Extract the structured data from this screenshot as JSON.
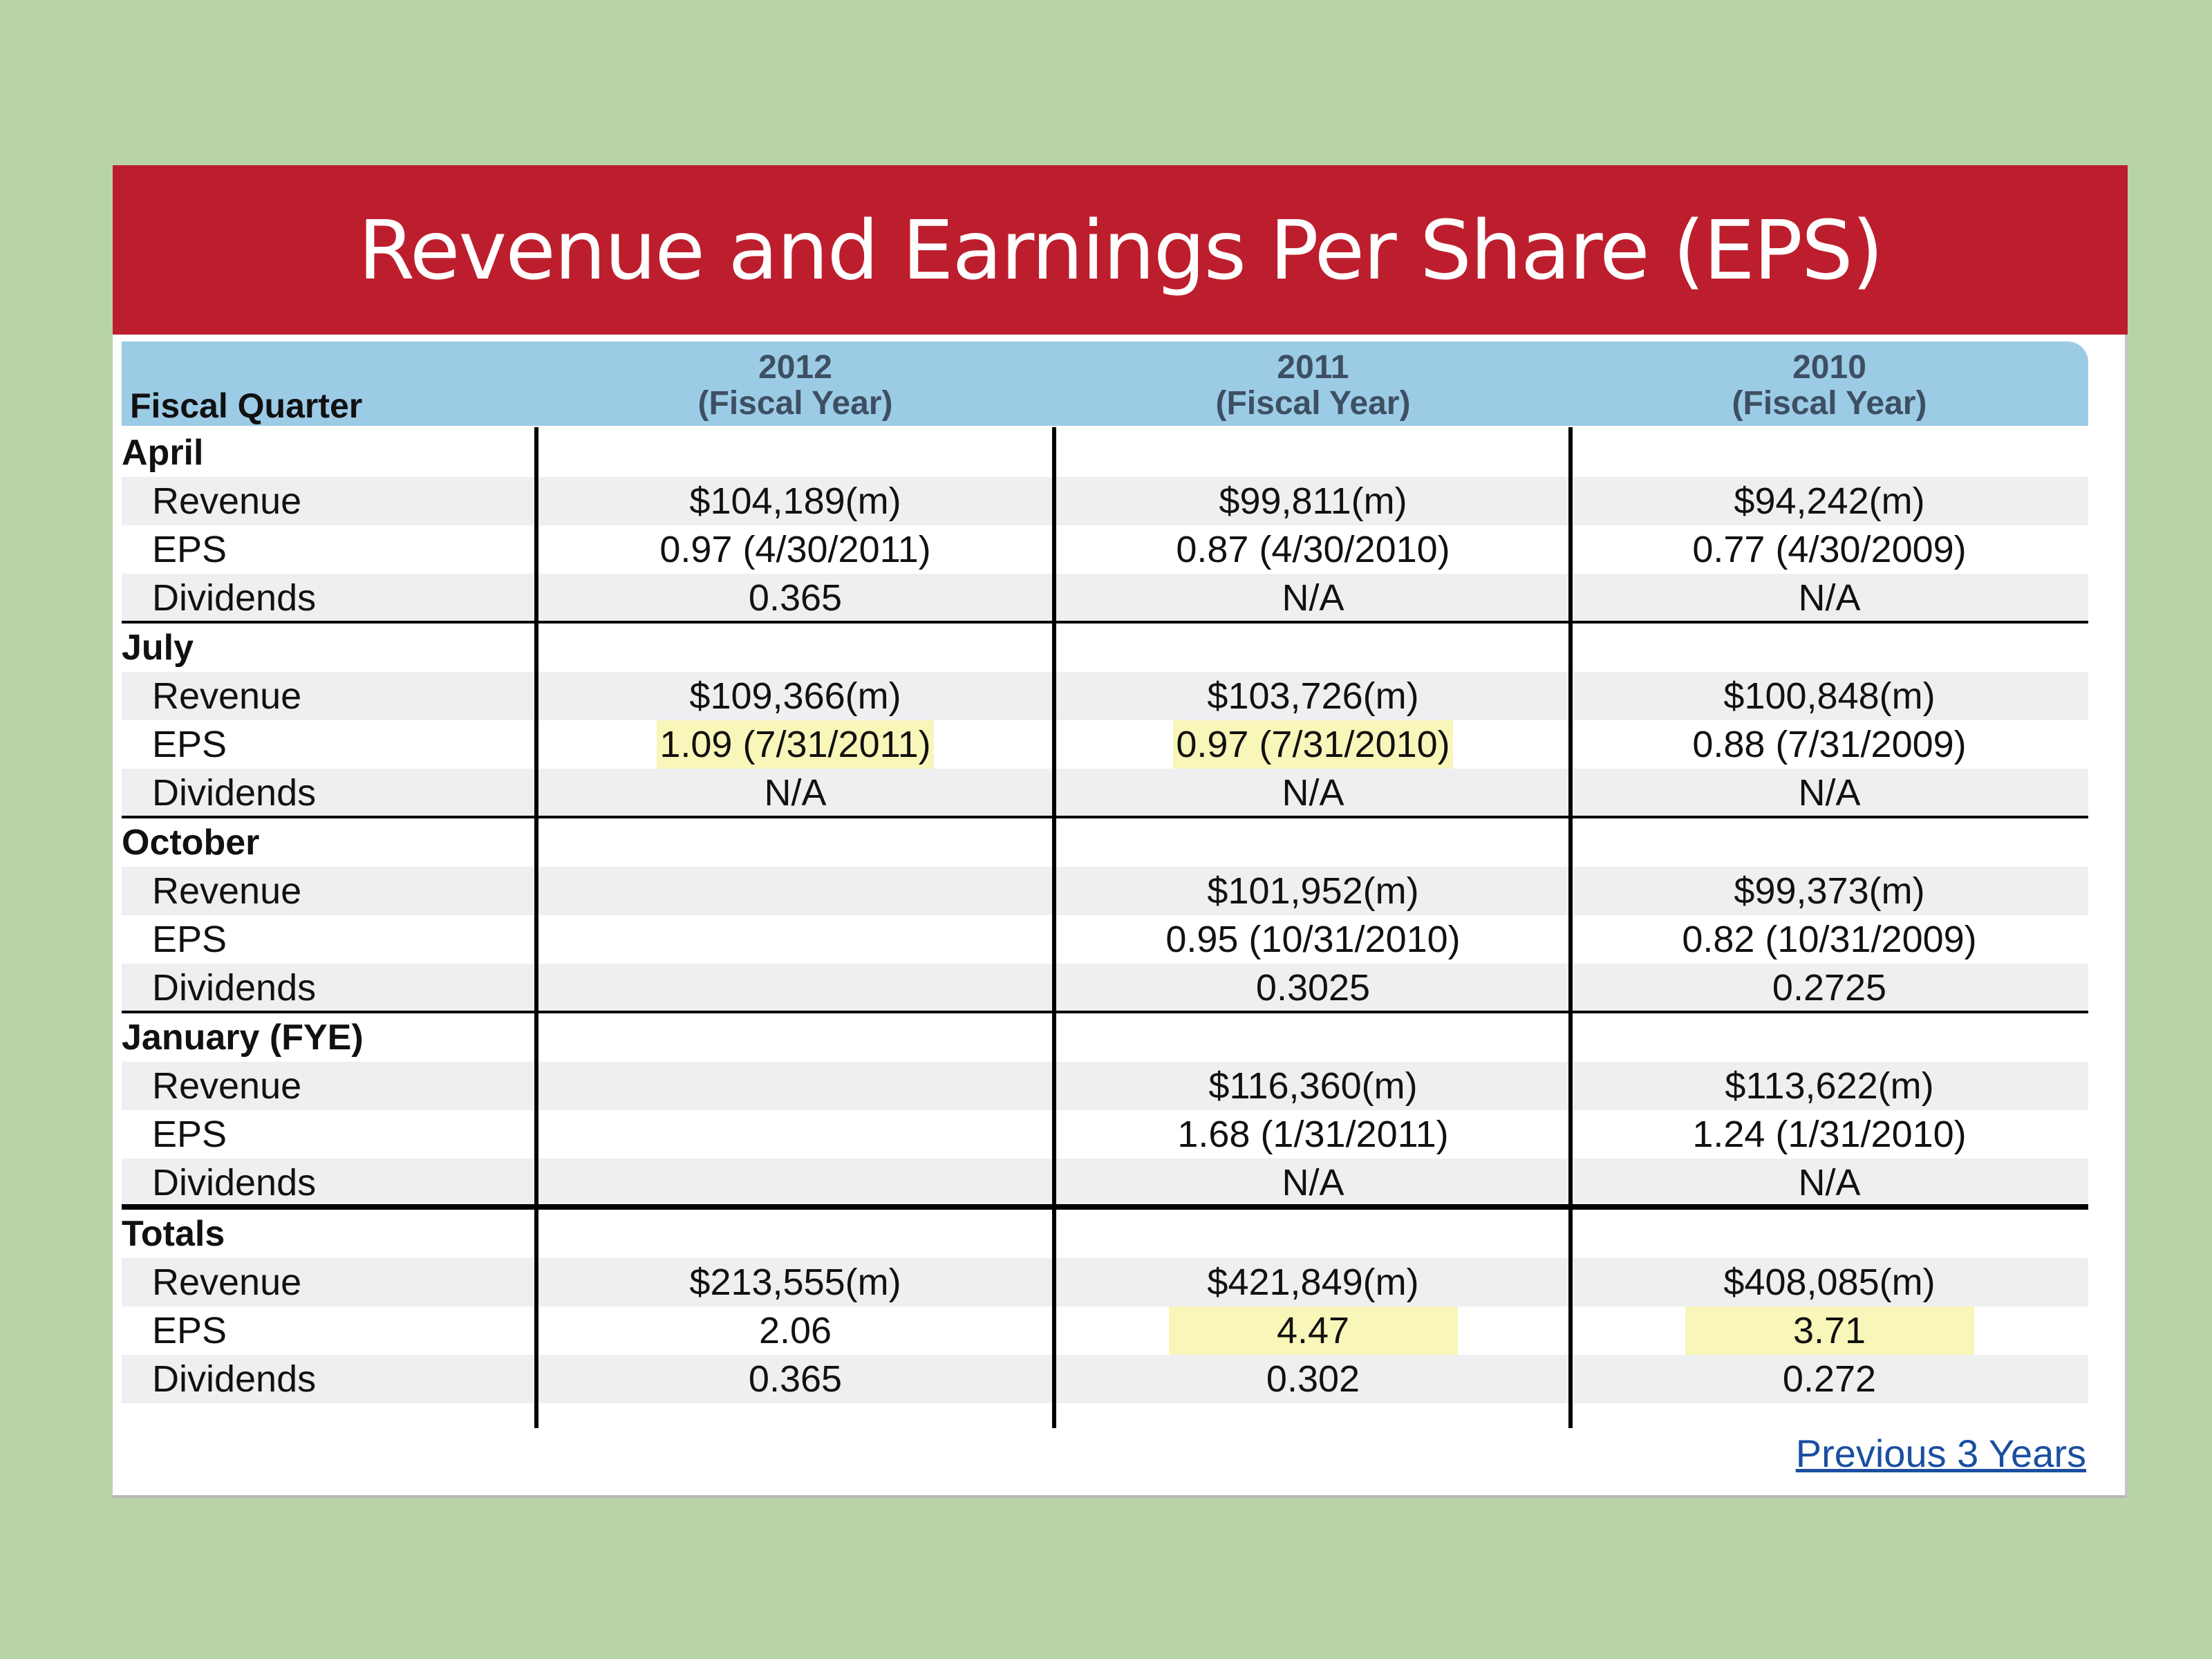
{
  "title": "Revenue and Earnings Per Share (EPS)",
  "header": {
    "quarter_label": "Fiscal Quarter",
    "columns": [
      {
        "year": "2012",
        "sub": "(Fiscal Year)"
      },
      {
        "year": "2011",
        "sub": "(Fiscal Year)"
      },
      {
        "year": "2010",
        "sub": "(Fiscal Year)"
      }
    ]
  },
  "groups": [
    {
      "label": "April",
      "rows": [
        {
          "label": "Revenue",
          "values": [
            "$104,189(m)",
            "$99,811(m)",
            "$94,242(m)"
          ],
          "highlight": [
            false,
            false,
            false
          ]
        },
        {
          "label": "EPS",
          "values": [
            "0.97 (4/30/2011)",
            "0.87 (4/30/2010)",
            "0.77 (4/30/2009)"
          ],
          "highlight": [
            false,
            false,
            false
          ]
        },
        {
          "label": "Dividends",
          "values": [
            "0.365",
            "N/A",
            "N/A"
          ],
          "highlight": [
            false,
            false,
            false
          ]
        }
      ]
    },
    {
      "label": "July",
      "rows": [
        {
          "label": "Revenue",
          "values": [
            "$109,366(m)",
            "$103,726(m)",
            "$100,848(m)"
          ],
          "highlight": [
            false,
            false,
            false
          ]
        },
        {
          "label": "EPS",
          "values": [
            "1.09 (7/31/2011)",
            "0.97 (7/31/2010)",
            "0.88 (7/31/2009)"
          ],
          "highlight": [
            true,
            true,
            false
          ]
        },
        {
          "label": "Dividends",
          "values": [
            "N/A",
            "N/A",
            "N/A"
          ],
          "highlight": [
            false,
            false,
            false
          ]
        }
      ]
    },
    {
      "label": "October",
      "rows": [
        {
          "label": "Revenue",
          "values": [
            "",
            "$101,952(m)",
            "$99,373(m)"
          ],
          "highlight": [
            false,
            false,
            false
          ]
        },
        {
          "label": "EPS",
          "values": [
            "",
            "0.95 (10/31/2010)",
            "0.82 (10/31/2009)"
          ],
          "highlight": [
            false,
            false,
            false
          ]
        },
        {
          "label": "Dividends",
          "values": [
            "",
            "0.3025",
            "0.2725"
          ],
          "highlight": [
            false,
            false,
            false
          ]
        }
      ]
    },
    {
      "label": "January  (FYE)",
      "rows": [
        {
          "label": "Revenue",
          "values": [
            "",
            "$116,360(m)",
            "$113,622(m)"
          ],
          "highlight": [
            false,
            false,
            false
          ]
        },
        {
          "label": "EPS",
          "values": [
            "",
            "1.68 (1/31/2011)",
            "1.24 (1/31/2010)"
          ],
          "highlight": [
            false,
            false,
            false
          ]
        },
        {
          "label": "Dividends",
          "values": [
            "",
            "N/A",
            "N/A"
          ],
          "highlight": [
            false,
            false,
            false
          ]
        }
      ]
    },
    {
      "label": "Totals",
      "rows": [
        {
          "label": "Revenue",
          "values": [
            "$213,555(m)",
            "$421,849(m)",
            "$408,085(m)"
          ],
          "highlight": [
            false,
            false,
            false
          ]
        },
        {
          "label": "EPS",
          "values": [
            "2.06",
            "4.47",
            "3.71"
          ],
          "highlight": [
            false,
            true,
            true
          ]
        },
        {
          "label": "Dividends",
          "values": [
            "0.365",
            "0.302",
            "0.272"
          ],
          "highlight": [
            false,
            false,
            false
          ]
        }
      ]
    }
  ],
  "footer": {
    "link_label": "Previous 3 Years"
  },
  "colors": {
    "background": "#b8d3a8",
    "banner": "#bd1e2d",
    "header": "#9ccbe6",
    "highlight": "#f8f6b8",
    "link": "#1a4fa0"
  }
}
